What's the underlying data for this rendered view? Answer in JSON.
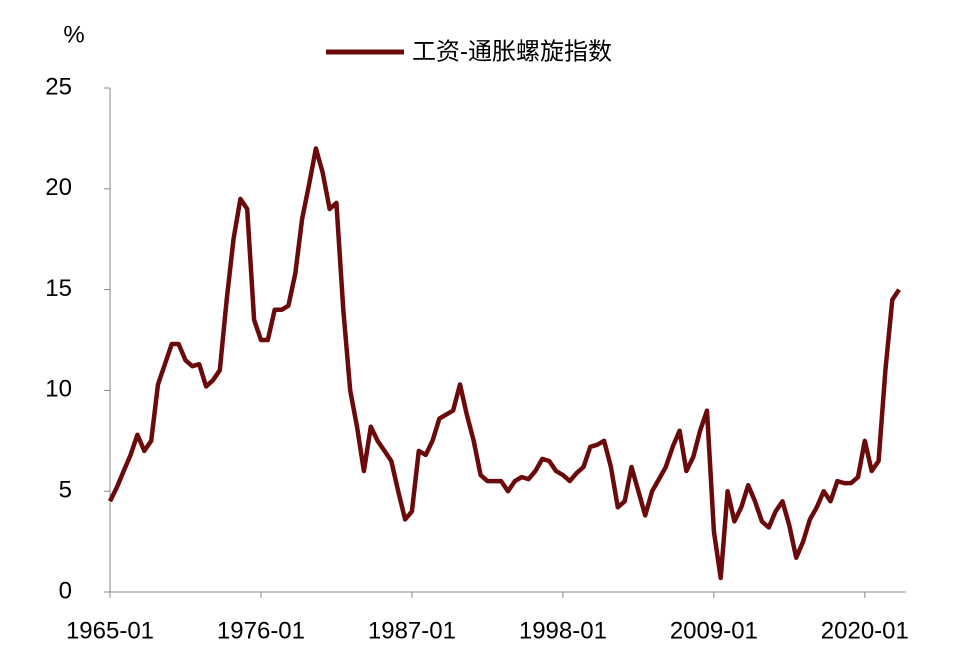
{
  "chart_data": {
    "type": "line",
    "y_label": "%",
    "series": [
      {
        "name": "工资-通胀螺旋指数",
        "color": "#6b0a0a",
        "values": [
          4.5,
          5.2,
          6,
          6.8,
          7.8,
          7,
          7.5,
          10.3,
          11.3,
          12.3,
          12.3,
          11.5,
          11.2,
          11.3,
          10.2,
          10.5,
          11,
          14.5,
          17.5,
          19.5,
          19,
          13.5,
          12.5,
          12.5,
          14,
          14,
          14.2,
          15.8,
          18.5,
          20.2,
          22,
          20.8,
          19,
          19.3,
          14,
          10,
          8.2,
          6,
          8.2,
          7.5,
          7,
          6.5,
          5,
          3.6,
          4,
          7,
          6.8,
          7.5,
          8.6,
          8.8,
          9,
          10.3,
          8.8,
          7.5,
          5.8,
          5.5,
          5.5,
          5.5,
          5,
          5.5,
          5.7,
          5.6,
          6,
          6.6,
          6.5,
          6,
          5.8,
          5.5,
          5.9,
          6.2,
          7.2,
          7.3,
          7.5,
          6.2,
          4.2,
          4.5,
          6.2,
          5,
          3.8,
          5,
          5.6,
          6.2,
          7.2,
          8,
          6,
          6.7,
          8,
          9,
          3,
          0.7,
          5,
          3.5,
          4.2,
          5.3,
          4.5,
          3.5,
          3.2,
          4,
          4.5,
          3.3,
          1.7,
          2.5,
          3.6,
          4.2,
          5,
          4.5,
          5.5,
          5.4,
          5.4,
          5.7,
          7.5,
          6,
          6.5,
          11,
          14.5,
          15
        ]
      }
    ],
    "x": [
      "1965-01",
      "1965-07",
      "1966-01",
      "1966-07",
      "1967-01",
      "1967-07",
      "1968-01",
      "1968-07",
      "1969-01",
      "1969-07",
      "1970-01",
      "1970-07",
      "1971-01",
      "1971-07",
      "1972-01",
      "1972-07",
      "1973-01",
      "1973-07",
      "1974-01",
      "1974-07",
      "1975-01",
      "1975-07",
      "1976-01",
      "1976-07",
      "1977-01",
      "1977-07",
      "1978-01",
      "1978-07",
      "1979-01",
      "1979-07",
      "1980-01",
      "1980-07",
      "1981-01",
      "1981-07",
      "1982-01",
      "1982-07",
      "1983-01",
      "1983-07",
      "1984-01",
      "1984-07",
      "1985-01",
      "1985-07",
      "1986-01",
      "1986-07",
      "1987-01",
      "1987-07",
      "1988-01",
      "1988-07",
      "1989-01",
      "1989-07",
      "1990-01",
      "1990-07",
      "1991-01",
      "1991-07",
      "1992-01",
      "1992-07",
      "1993-01",
      "1993-07",
      "1994-01",
      "1994-07",
      "1995-01",
      "1995-07",
      "1996-01",
      "1996-07",
      "1997-01",
      "1997-07",
      "1998-01",
      "1998-07",
      "1999-01",
      "1999-07",
      "2000-01",
      "2000-07",
      "2001-01",
      "2001-07",
      "2002-01",
      "2002-07",
      "2003-01",
      "2003-07",
      "2004-01",
      "2004-07",
      "2005-01",
      "2005-07",
      "2006-01",
      "2006-07",
      "2007-01",
      "2007-07",
      "2008-01",
      "2008-07",
      "2009-01",
      "2009-07",
      "2010-01",
      "2010-07",
      "2011-01",
      "2011-07",
      "2012-01",
      "2012-07",
      "2013-01",
      "2013-07",
      "2014-01",
      "2014-07",
      "2015-01",
      "2015-07",
      "2016-01",
      "2016-07",
      "2017-01",
      "2017-07",
      "2018-01",
      "2018-07",
      "2019-01",
      "2019-07",
      "2020-01",
      "2020-07",
      "2021-01",
      "2021-07",
      "2022-01",
      "2022-07"
    ],
    "xlim": [
      "1965-01",
      "2023-01"
    ],
    "xticks": [
      "1965-01",
      "1976-01",
      "1987-01",
      "1998-01",
      "2009-01",
      "2020-01"
    ],
    "ylim": [
      0,
      25
    ],
    "yticks": [
      0,
      5,
      10,
      15,
      20,
      25
    ],
    "legend": "top"
  }
}
